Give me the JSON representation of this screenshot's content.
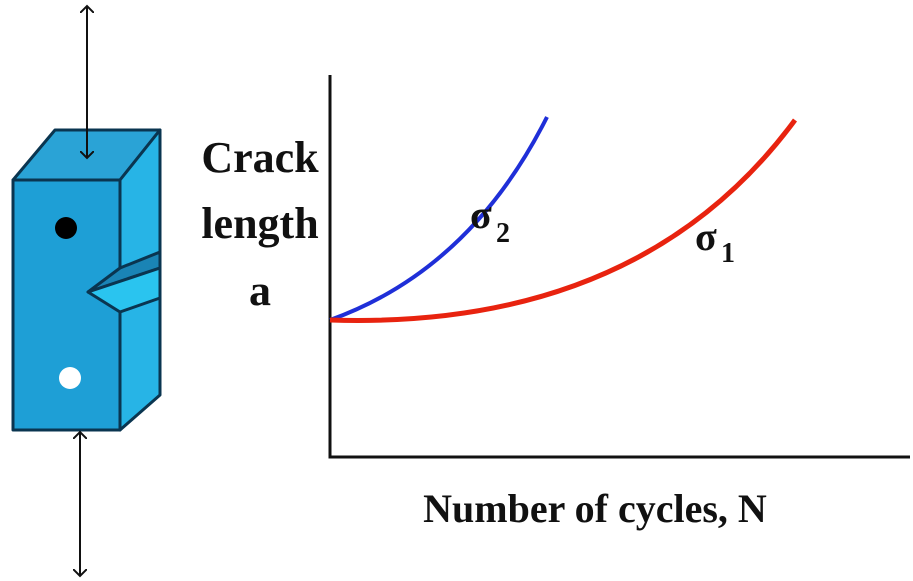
{
  "axis_labels": {
    "y": [
      "Crack",
      "length",
      "a"
    ],
    "x": "Number of cycles, N"
  },
  "curves": [
    {
      "symbol": "σ",
      "subscript": "2",
      "color": "#1f2fd8"
    },
    {
      "symbol": "σ",
      "subscript": "1",
      "color": "#e8230f"
    }
  ]
}
